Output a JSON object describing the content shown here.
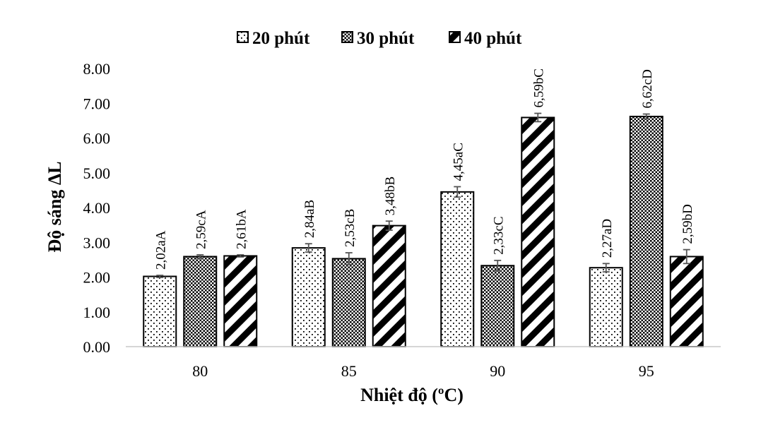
{
  "chart_data": {
    "type": "bar",
    "title": "",
    "xlabel": "Nhiệt độ (ºC)",
    "ylabel": "Độ sáng ΔL",
    "ylim": [
      0,
      8
    ],
    "yticks": [
      "0.00",
      "1.00",
      "2.00",
      "3.00",
      "4.00",
      "5.00",
      "6.00",
      "7.00",
      "8.00"
    ],
    "categories": [
      "80",
      "85",
      "90",
      "95"
    ],
    "grid": false,
    "legend_position": "top",
    "series": [
      {
        "name": "20 phút",
        "pattern": "dots",
        "values": [
          2.02,
          2.84,
          4.45,
          2.27
        ],
        "errors": [
          0.03,
          0.12,
          0.15,
          0.12
        ],
        "labels": [
          "2,02aA",
          "2,84aB",
          "4,45aC",
          "2,27aD"
        ]
      },
      {
        "name": "30 phút",
        "pattern": "checker",
        "values": [
          2.59,
          2.53,
          2.33,
          6.62
        ],
        "errors": [
          0.05,
          0.17,
          0.15,
          0.07
        ],
        "labels": [
          "2,59cA",
          "2,53cB",
          "2,33cC",
          "6,62cD"
        ]
      },
      {
        "name": "40 phút",
        "pattern": "diagonal",
        "values": [
          2.61,
          3.48,
          6.59,
          2.59
        ],
        "errors": [
          0.03,
          0.13,
          0.12,
          0.2
        ],
        "labels": [
          "2,61bA",
          "3,48bB",
          "6,59bC",
          "2,59bD"
        ]
      }
    ]
  }
}
